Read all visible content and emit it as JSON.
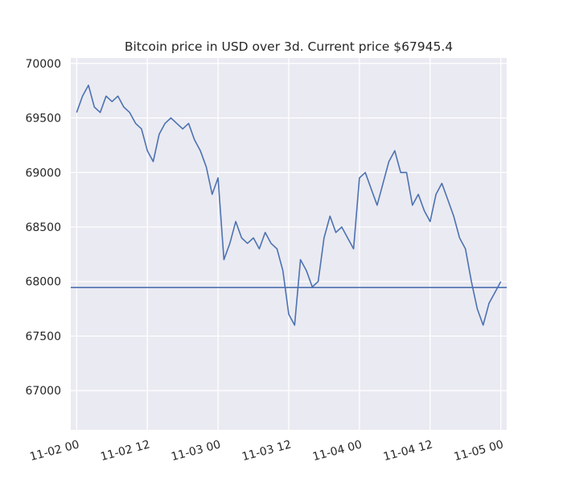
{
  "chart_data": {
    "type": "line",
    "title": "Bitcoin price in USD over 3d. Current price $67945.4",
    "xlabel": "",
    "ylabel": "",
    "x_axis": {
      "unit": "time",
      "start": "11-02 00",
      "end": "11-05 00"
    },
    "xlim": [
      "11-01 23",
      "11-05 01"
    ],
    "ylim": [
      66640,
      70050
    ],
    "x_ticks": [
      "11-02 00",
      "11-02 12",
      "11-03 00",
      "11-03 12",
      "11-04 00",
      "11-04 12",
      "11-05 00"
    ],
    "y_ticks": [
      67000,
      67500,
      68000,
      68500,
      69000,
      69500,
      70000
    ],
    "grid": true,
    "series": [
      {
        "x": [
          "11-02 00",
          "11-02 01",
          "11-02 02",
          "11-02 03",
          "11-02 04",
          "11-02 05",
          "11-02 06",
          "11-02 07",
          "11-02 08",
          "11-02 09",
          "11-02 10",
          "11-02 11",
          "11-02 12",
          "11-02 13",
          "11-02 14",
          "11-02 15",
          "11-02 16",
          "11-02 17",
          "11-02 18",
          "11-02 19",
          "11-02 20",
          "11-02 21",
          "11-02 22",
          "11-02 23",
          "11-03 00",
          "11-03 01",
          "11-03 02",
          "11-03 03",
          "11-03 04",
          "11-03 05",
          "11-03 06",
          "11-03 07",
          "11-03 08",
          "11-03 09",
          "11-03 10",
          "11-03 11",
          "11-03 12",
          "11-03 13",
          "11-03 14",
          "11-03 15",
          "11-03 16",
          "11-03 17",
          "11-03 18",
          "11-03 19",
          "11-03 20",
          "11-03 21",
          "11-03 22",
          "11-03 23",
          "11-04 00",
          "11-04 01",
          "11-04 02",
          "11-04 03",
          "11-04 04",
          "11-04 05",
          "11-04 06",
          "11-04 07",
          "11-04 08",
          "11-04 09",
          "11-04 10",
          "11-04 11",
          "11-04 12",
          "11-04 13",
          "11-04 14",
          "11-04 15",
          "11-04 16",
          "11-04 17",
          "11-04 18",
          "11-04 19",
          "11-04 20",
          "11-04 21",
          "11-04 22",
          "11-04 23",
          "11-05 00"
        ],
        "y": [
          69550,
          69700,
          69800,
          69600,
          69550,
          69700,
          69650,
          69700,
          69600,
          69550,
          69450,
          69400,
          69200,
          69100,
          69350,
          69450,
          69500,
          69450,
          69400,
          69450,
          69300,
          69200,
          69050,
          68800,
          68950,
          68200,
          68350,
          68550,
          68400,
          68350,
          68400,
          68300,
          68450,
          68350,
          68300,
          68100,
          67700,
          67600,
          68200,
          68100,
          67950,
          68000,
          68400,
          68600,
          68450,
          68500,
          68400,
          68300,
          68950,
          69000,
          68850,
          68700,
          68900,
          69100,
          69200,
          69000,
          69000,
          68700,
          68800,
          68650,
          68550,
          68800,
          68900,
          68750,
          68600,
          68400,
          68300,
          68000,
          67750,
          67600,
          67800,
          67900,
          68000
        ],
        "current_price": 67945.4
      }
    ],
    "hline": {
      "y": 67945.4
    },
    "colors": {
      "line": "#4c72b0",
      "background": "#eaeaf2",
      "grid": "#ffffff"
    }
  }
}
